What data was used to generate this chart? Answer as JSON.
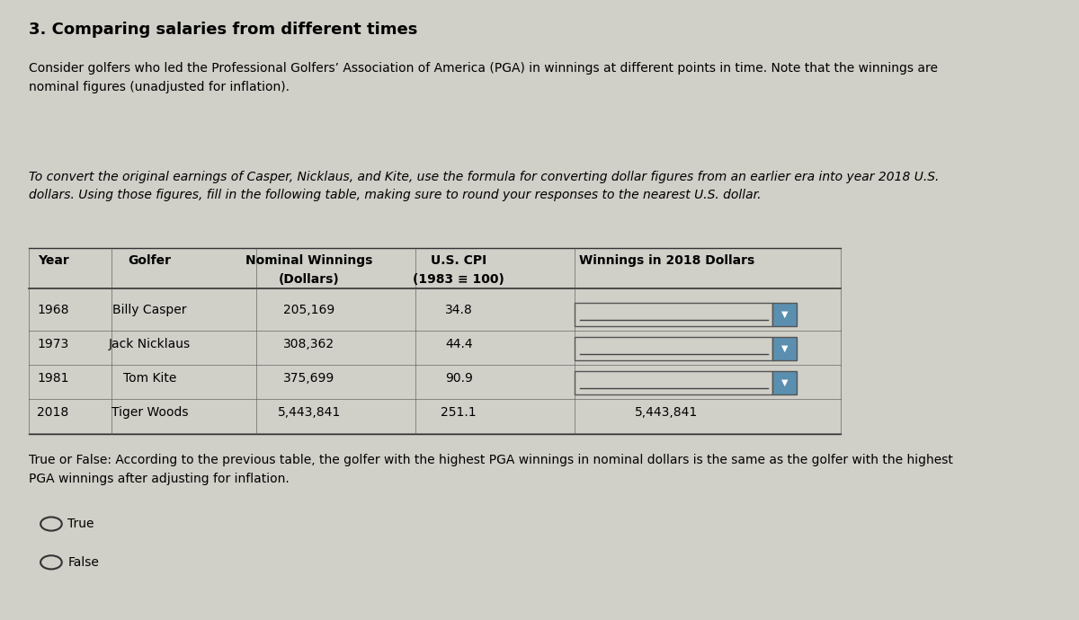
{
  "title": "3. Comparing salaries from different times",
  "para1": "Consider golfers who led the Professional Golfers’ Association of America (PGA) in winnings at different points in time. Note that the winnings are\nnominal figures (unadjusted for inflation).",
  "para2_italic": "To convert the original earnings of Casper, Nicklaus, and Kite, use the formula for converting dollar figures from an earlier era into year 2018 U.S.\ndollars. Using those figures, fill in the following table, making sure to round your responses to the nearest U.S. dollar.",
  "rows": [
    [
      "1968",
      "Billy Casper",
      "205,169",
      "34.8",
      ""
    ],
    [
      "1973",
      "Jack Nicklaus",
      "308,362",
      "44.4",
      ""
    ],
    [
      "1981",
      "Tom Kite",
      "375,699",
      "90.9",
      ""
    ],
    [
      "2018",
      "Tiger Woods",
      "5,443,841",
      "251.1",
      "5,443,841"
    ]
  ],
  "true_false_text": "True or False: According to the previous table, the golfer with the highest PGA winnings in nominal dollars is the same as the golfer with the highest\nPGA winnings after adjusting for inflation.",
  "option_true": "True",
  "option_false": "False",
  "bg_color": "#d0cfc8",
  "text_color": "#000000",
  "dropdown_color": "#5b8fb0",
  "line_color": "#333333",
  "row_line_color": "#555555"
}
